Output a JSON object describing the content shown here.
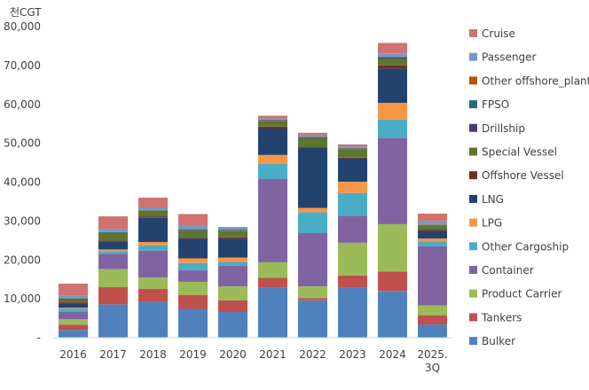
{
  "chart_data": {
    "type": "bar",
    "stacked": true,
    "unit_label": "천CGT",
    "ylim": [
      0,
      80000
    ],
    "y_ticks": [
      "-",
      "10,000",
      "20,000",
      "30,000",
      "40,000",
      "50,000",
      "60,000",
      "70,000",
      "80,000"
    ],
    "grid": false,
    "legend_position": "right",
    "categories": [
      "2016",
      "2017",
      "2018",
      "2019",
      "2020",
      "2021",
      "2022",
      "2023",
      "2024",
      "2025.|3Q"
    ],
    "series": [
      {
        "name": "Bulker",
        "color": "#4f81bd",
        "values": [
          2000,
          8600,
          9200,
          7400,
          6600,
          12800,
          9600,
          12800,
          12000,
          3400
        ]
      },
      {
        "name": "Tankers",
        "color": "#c0504d",
        "values": [
          1300,
          4400,
          3400,
          3600,
          3000,
          2600,
          600,
          3200,
          5000,
          2400
        ]
      },
      {
        "name": "Product Carrier",
        "color": "#9bbb59",
        "values": [
          1400,
          4600,
          2900,
          3400,
          3600,
          4000,
          3000,
          8400,
          12200,
          2500
        ]
      },
      {
        "name": "Container",
        "color": "#8064a2",
        "values": [
          1900,
          4000,
          6900,
          3000,
          5400,
          21400,
          13700,
          7000,
          22100,
          15200
        ]
      },
      {
        "name": "Other Cargoship",
        "color": "#4bacc6",
        "values": [
          900,
          700,
          1300,
          1800,
          900,
          3900,
          5400,
          5800,
          4800,
          1300
        ]
      },
      {
        "name": "LPG",
        "color": "#f79646",
        "values": [
          200,
          400,
          900,
          1200,
          1100,
          2300,
          1100,
          2900,
          4300,
          700
        ]
      },
      {
        "name": "LNG",
        "color": "#23426e",
        "values": [
          1000,
          2000,
          6200,
          5100,
          4900,
          6800,
          15400,
          6000,
          8800,
          2000
        ]
      },
      {
        "name": "Offshore Vessel",
        "color": "#772c2a",
        "values": [
          400,
          300,
          300,
          200,
          300,
          500,
          200,
          200,
          800,
          200
        ]
      },
      {
        "name": "Special Vessel",
        "color": "#5f7530",
        "values": [
          700,
          1800,
          1400,
          1800,
          1600,
          1400,
          2300,
          2100,
          1700,
          1200
        ]
      },
      {
        "name": "Drillship",
        "color": "#4d3b62",
        "values": [
          200,
          100,
          100,
          100,
          100,
          100,
          100,
          100,
          200,
          100
        ]
      },
      {
        "name": "FPSO",
        "color": "#276a7c",
        "values": [
          100,
          200,
          100,
          200,
          200,
          200,
          200,
          200,
          300,
          100
        ]
      },
      {
        "name": "Other offshore_plant",
        "color": "#b65708",
        "values": [
          100,
          100,
          100,
          100,
          100,
          100,
          100,
          100,
          100,
          100
        ]
      },
      {
        "name": "Passenger",
        "color": "#729aca",
        "values": [
          700,
          800,
          700,
          900,
          500,
          300,
          500,
          400,
          800,
          700
        ]
      },
      {
        "name": "Cruise",
        "color": "#d07270",
        "values": [
          3000,
          3200,
          2500,
          3000,
          200,
          700,
          500,
          500,
          2700,
          2000
        ]
      }
    ]
  }
}
